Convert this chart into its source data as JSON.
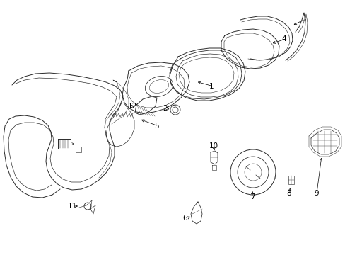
{
  "background_color": "#ffffff",
  "border_color": "#000000",
  "figure_width": 4.89,
  "figure_height": 3.6,
  "dpi": 100,
  "line_color": "#2a2a2a",
  "text_color": "#000000",
  "font_size": 7.5
}
